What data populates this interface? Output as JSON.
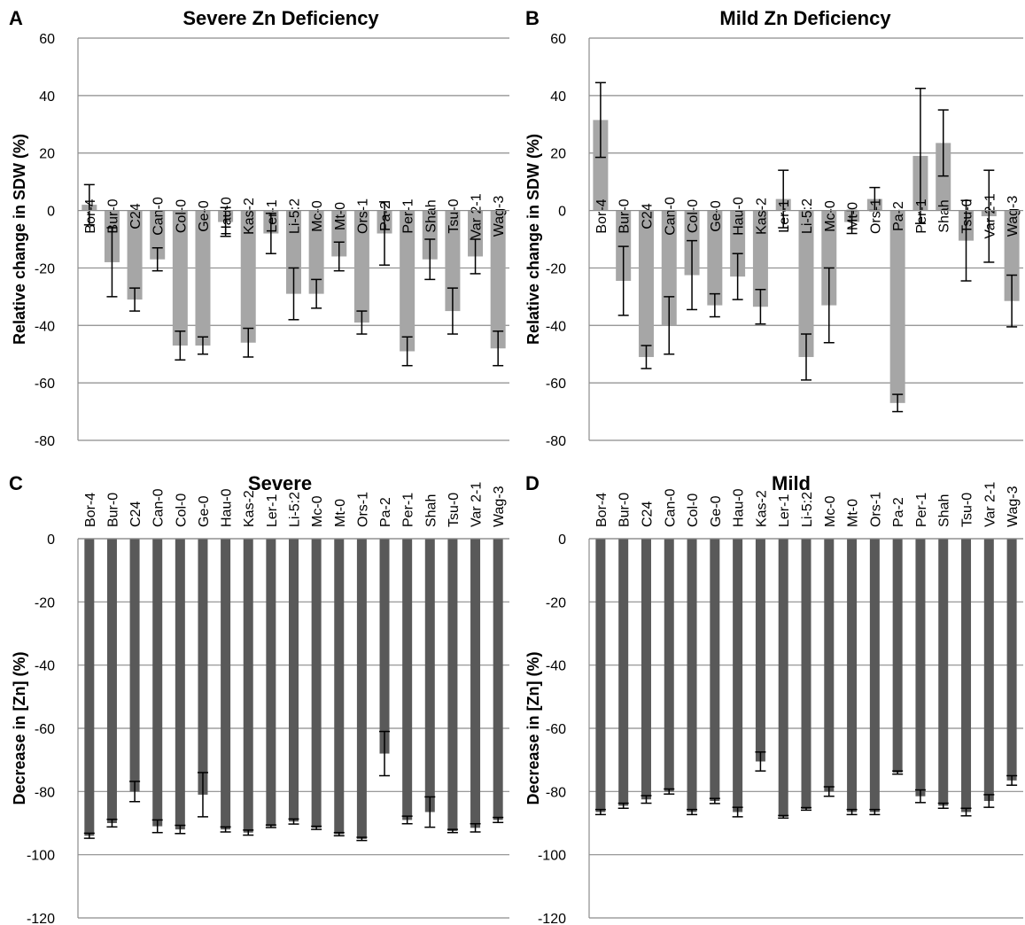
{
  "chart_data": [
    {
      "panel": "A",
      "type": "bar",
      "title": "Severe Zn Deficiency",
      "xlabel": "",
      "ylabel": "Relative change in  SDW (%)",
      "ylim": [
        -80,
        60
      ],
      "yticks": [
        60,
        40,
        20,
        0,
        -20,
        -40,
        -60,
        -80
      ],
      "grid": true,
      "bar_color": "#a6a6a6",
      "categories": [
        "Bor-4",
        "Bur-0",
        "C24",
        "Can-0",
        "Col-0",
        "Ge-0",
        "Hau-0",
        "Kas-2",
        "Ler-1",
        "Li-5:2",
        "Mc-0",
        "Mt-0",
        "Ors-1",
        "Pa-2",
        "Per-1",
        "Shah",
        "Tsu-0",
        "Var 2-1",
        "Wag-3"
      ],
      "values": [
        2,
        -18,
        -31,
        -17,
        -47,
        -47,
        -4,
        -46,
        -8,
        -29,
        -29,
        -16,
        -39,
        -8,
        -49,
        -17,
        -35,
        -16,
        -48
      ],
      "errors": [
        7,
        12,
        4,
        4,
        5,
        3,
        5,
        5,
        7,
        9,
        5,
        5,
        4,
        11,
        5,
        7,
        8,
        6,
        6
      ]
    },
    {
      "panel": "B",
      "type": "bar",
      "title": "Mild Zn Deficiency",
      "xlabel": "",
      "ylabel": "Relative change in  SDW (%)",
      "ylim": [
        -80,
        60
      ],
      "yticks": [
        60,
        40,
        20,
        0,
        -20,
        -40,
        -60,
        -80
      ],
      "grid": true,
      "bar_color": "#a6a6a6",
      "categories": [
        "Bor-4",
        "Bur-0",
        "C24",
        "Can-0",
        "Col-0",
        "Ge-0",
        "Hau-0",
        "Kas-2",
        "Ler-1",
        "Li-5:2",
        "Mc-0",
        "Mt-0",
        "Ors-1",
        "Pa-2",
        "Per-1",
        "Shah",
        "Tsu-0",
        "Var 2-1",
        "Wag-3"
      ],
      "values": [
        31.5,
        -24.5,
        -51,
        -40,
        -22.5,
        -33,
        -23,
        -33.5,
        4,
        -51,
        -33,
        -4,
        4,
        -67,
        19,
        23.5,
        -10.5,
        -2,
        -31.5
      ],
      "errors": [
        13,
        12,
        4,
        10,
        12,
        4,
        8,
        6,
        10,
        8,
        13,
        4,
        4,
        3,
        23.5,
        11.5,
        14,
        16,
        9
      ]
    },
    {
      "panel": "C",
      "type": "bar",
      "title": "Severe",
      "xlabel": "",
      "ylabel": "Decrease in [Zn] (%)",
      "ylim": [
        -120,
        0
      ],
      "yticks": [
        0,
        -20,
        -40,
        -60,
        -80,
        -100,
        -120
      ],
      "grid": true,
      "bar_color": "#595959",
      "categories": [
        "Bor-4",
        "Bur-0",
        "C24",
        "Can-0",
        "Col-0",
        "Ge-0",
        "Hau-0",
        "Kas-2",
        "Ler-1",
        "Li-5:2",
        "Mc-0",
        "Mt-0",
        "Ors-1",
        "Pa-2",
        "Per-1",
        "Shah",
        "Tsu-0",
        "Var 2-1",
        "Wag-3"
      ],
      "values": [
        -94,
        -90,
        -80,
        -91,
        -92,
        -81,
        -92,
        -93,
        -91,
        -89.5,
        -91.5,
        -93.5,
        -95,
        -68,
        -89,
        -86.5,
        -92.5,
        -91.5,
        -89
      ],
      "errors": [
        0.8,
        1.2,
        3.2,
        2,
        1.3,
        7,
        0.8,
        0.8,
        0.4,
        0.8,
        0.5,
        0.5,
        0.5,
        7,
        1.2,
        4.8,
        0.5,
        1.3,
        0.8
      ]
    },
    {
      "panel": "D",
      "type": "bar",
      "title": "Mild",
      "xlabel": "",
      "ylabel": "Decrease in [Zn] (%)",
      "ylim": [
        -120,
        0
      ],
      "yticks": [
        0,
        -20,
        -40,
        -60,
        -80,
        -100,
        -120
      ],
      "grid": true,
      "bar_color": "#595959",
      "categories": [
        "Bor-4",
        "Bur-0",
        "C24",
        "Can-0",
        "Col-0",
        "Ge-0",
        "Hau-0",
        "Kas-2",
        "Ler-1",
        "Li-5:2",
        "Mc-0",
        "Mt-0",
        "Ors-1",
        "Pa-2",
        "Per-1",
        "Shah",
        "Tsu-0",
        "Var 2-1",
        "Wag-3"
      ],
      "values": [
        -86.5,
        -84.5,
        -82.5,
        -80,
        -86.5,
        -83,
        -86.5,
        -70.5,
        -88,
        -85.5,
        -80,
        -86.5,
        -86.5,
        -74,
        -81.5,
        -84.5,
        -86.5,
        -83,
        -76.5
      ],
      "errors": [
        0.8,
        0.8,
        1.2,
        0.8,
        0.8,
        0.8,
        1.5,
        3,
        0.4,
        0.4,
        1.5,
        0.8,
        0.8,
        0.5,
        2,
        0.8,
        1.2,
        2,
        1.5
      ]
    }
  ]
}
